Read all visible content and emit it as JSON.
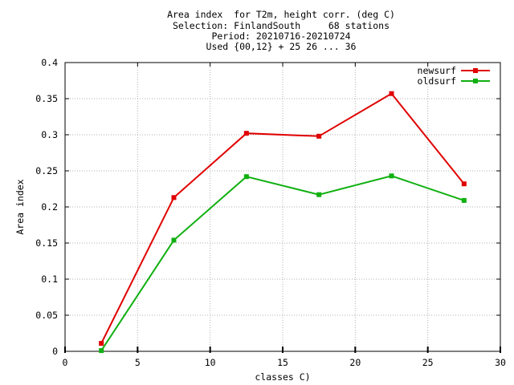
{
  "chart_data": {
    "type": "line",
    "title_lines": [
      "Area index  for T2m, height corr. (deg C)",
      "Selection: FinlandSouth     68 stations",
      "Period: 20210716-20210724",
      "Used {00,12} + 25 26 ... 36"
    ],
    "xlabel": "classes C)",
    "ylabel": "Area index",
    "xlim": [
      0,
      30
    ],
    "ylim": [
      0,
      0.4
    ],
    "x_ticks": [
      0,
      5,
      10,
      15,
      20,
      25,
      30
    ],
    "x_tick_labels": [
      "0",
      "5",
      "10",
      "15",
      "20",
      "25",
      "30"
    ],
    "y_ticks": [
      0,
      0.05,
      0.1,
      0.15,
      0.2,
      0.25,
      0.3,
      0.35,
      0.4
    ],
    "y_tick_labels": [
      "0",
      "0.05",
      "0.1",
      "0.15",
      "0.2",
      "0.25",
      "0.3",
      "0.35",
      "0.4"
    ],
    "grid": true,
    "legend_position": "top-right",
    "series": [
      {
        "name": "newsurf",
        "color": "#e00000",
        "x": [
          2.5,
          7.5,
          12.5,
          17.5,
          22.5,
          27.5
        ],
        "y": [
          0.011,
          0.213,
          0.302,
          0.298,
          0.357,
          0.232
        ]
      },
      {
        "name": "oldsurf",
        "color": "#10b010",
        "x": [
          2.5,
          7.5,
          12.5,
          17.5,
          22.5,
          27.5
        ],
        "y": [
          0.001,
          0.154,
          0.242,
          0.217,
          0.243,
          0.209
        ]
      }
    ]
  }
}
